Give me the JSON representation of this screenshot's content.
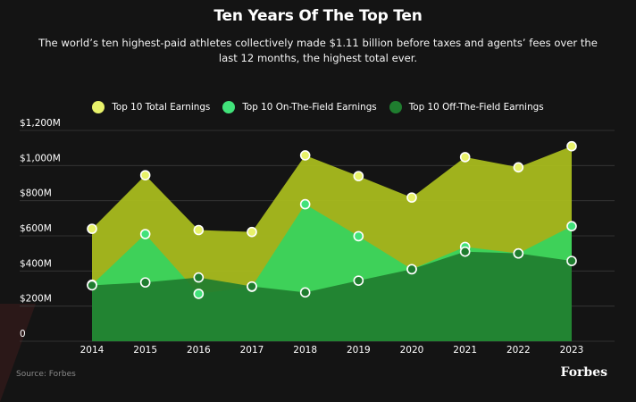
{
  "chart_data": {
    "type": "area",
    "title": "Ten Years Of The Top Ten",
    "subtitle_line1": "The world’s ten highest-paid athletes collectively made $1.11 billion before taxes and agents’ fees over the",
    "subtitle_line2": "last 12 months, the highest total ever.",
    "x": [
      "2014",
      "2015",
      "2016",
      "2017",
      "2018",
      "2019",
      "2020",
      "2021",
      "2022",
      "2023"
    ],
    "ylim": [
      0,
      1200
    ],
    "yticks": [
      0,
      200,
      400,
      600,
      800,
      1000,
      1200
    ],
    "ytick_labels": [
      "0",
      "$200M",
      "$400M",
      "$600M",
      "$800M",
      "$1,000M",
      "$1,200M"
    ],
    "grid": true,
    "legend_position": "top",
    "series": [
      {
        "name": "Top 10 Total Earnings",
        "color": "#a8bb1e",
        "marker": "#e8f26a",
        "values": [
          640,
          945,
          633,
          622,
          1058,
          940,
          818,
          1048,
          990,
          1110
        ]
      },
      {
        "name": "Top 10 On-The-Field Earnings",
        "color": "#35d45e",
        "marker": "#41e27a",
        "values": [
          322,
          610,
          270,
          310,
          780,
          598,
          410,
          537,
          500,
          655
        ]
      },
      {
        "name": "Top 10 Off-The-Field Earnings",
        "color": "#1f7d2f",
        "marker": "#1f7d2f",
        "values": [
          318,
          335,
          363,
          312,
          278,
          345,
          410,
          510,
          500,
          457
        ]
      }
    ]
  },
  "footer": {
    "source": "Source: Forbes",
    "brand": "Forbes"
  }
}
